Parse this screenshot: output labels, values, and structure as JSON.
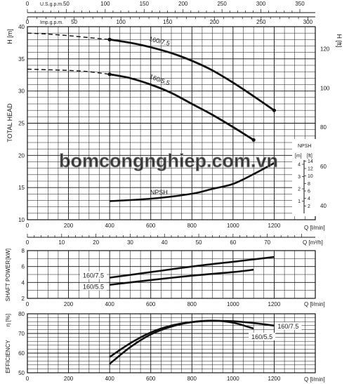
{
  "watermark": "bomcongnghiep.com.vn",
  "top_axes": {
    "usgpm": {
      "label": "U.S.g.p.m.",
      "ticks": [
        0,
        50,
        100,
        150,
        200,
        250,
        300,
        350
      ],
      "max": 350
    },
    "impgpm": {
      "label": "Imp.g.p.m.",
      "ticks": [
        0,
        50,
        100,
        150,
        200,
        250,
        300
      ],
      "max": 300
    }
  },
  "chart_data": [
    {
      "type": "line",
      "name": "head",
      "ylabel": "TOTAL HEAD",
      "yunit": "H [m]",
      "xlabel": "Q [l/min]",
      "xlim": [
        0,
        1400
      ],
      "ylim": [
        10,
        40
      ],
      "yticks": [
        10,
        15,
        20,
        25,
        30,
        35,
        40
      ],
      "xticks": [
        0,
        200,
        400,
        600,
        800,
        1000,
        1200
      ],
      "right_axis": {
        "unit": "H [ft]",
        "ticks": [
          40,
          60,
          80,
          100,
          120
        ]
      },
      "m3h_axis": {
        "label": "Q [m³/h]",
        "ticks": [
          0,
          10,
          20,
          30,
          40,
          50,
          60,
          70
        ]
      },
      "series": [
        {
          "name": "160/7.5",
          "dashed_x": [
            0,
            100,
            200,
            300,
            400
          ],
          "dashed_y": [
            39.0,
            38.85,
            38.6,
            38.3,
            38.0
          ],
          "x": [
            400,
            500,
            600,
            700,
            800,
            900,
            1000,
            1100,
            1200
          ],
          "y": [
            38.0,
            37.5,
            36.8,
            35.9,
            34.7,
            33.2,
            31.3,
            29.2,
            27.0
          ]
        },
        {
          "name": "160/5.5",
          "dashed_x": [
            0,
            100,
            200,
            300,
            400
          ],
          "dashed_y": [
            33.4,
            33.3,
            33.2,
            33.0,
            32.6
          ],
          "x": [
            400,
            500,
            600,
            700,
            800,
            900,
            1000,
            1100
          ],
          "y": [
            32.6,
            32.0,
            31.0,
            29.7,
            28.0,
            26.3,
            24.4,
            22.4
          ]
        }
      ],
      "npsh": {
        "name": "NPSH",
        "axis_unit": "[m]",
        "axis_unit_ft": "[ft]",
        "ticks_m": [
          1,
          2,
          3,
          4
        ],
        "ticks_ft": [
          2,
          4,
          6,
          8,
          10,
          12,
          14
        ],
        "x": [
          400,
          600,
          800,
          900,
          1000,
          1100,
          1200
        ],
        "m": [
          1.0,
          1.2,
          1.6,
          2.0,
          2.4,
          3.2,
          4.1
        ]
      }
    },
    {
      "type": "line",
      "name": "shaft-power",
      "ylabel": "SHAFT POWER",
      "yunit": "[kW]",
      "xlabel": "Q [l/min]",
      "xlim": [
        0,
        1400
      ],
      "ylim": [
        2,
        8
      ],
      "yticks": [
        2,
        4,
        6,
        8
      ],
      "xticks": [
        0,
        200,
        400,
        600,
        800,
        1000,
        1200
      ],
      "series": [
        {
          "name": "160/7.5",
          "x": [
            400,
            600,
            800,
            1000,
            1200
          ],
          "y": [
            4.6,
            5.3,
            6.0,
            6.6,
            7.2
          ]
        },
        {
          "name": "160/5.5",
          "x": [
            400,
            600,
            800,
            1000,
            1100
          ],
          "y": [
            3.7,
            4.3,
            4.85,
            5.3,
            5.6
          ]
        }
      ]
    },
    {
      "type": "line",
      "name": "efficiency",
      "ylabel": "EFFICIENCY",
      "yunit": "η [%]",
      "xlabel": "Q [l/min]",
      "xlim": [
        0,
        1400
      ],
      "ylim": [
        50,
        80
      ],
      "yticks": [
        50,
        60,
        70,
        80
      ],
      "xticks": [
        0,
        200,
        400,
        600,
        800,
        1000,
        1200
      ],
      "series": [
        {
          "name": "160/7.5",
          "x": [
            400,
            500,
            600,
            700,
            800,
            900,
            1000,
            1100,
            1200
          ],
          "y": [
            58.0,
            65.0,
            70.5,
            74.0,
            75.8,
            76.4,
            76.2,
            75.3,
            74.0
          ]
        },
        {
          "name": "160/5.5",
          "x": [
            400,
            500,
            600,
            700,
            800,
            900,
            1000,
            1100
          ],
          "y": [
            54.5,
            63.0,
            69.5,
            73.5,
            75.8,
            76.5,
            75.5,
            72.5
          ]
        }
      ]
    }
  ]
}
